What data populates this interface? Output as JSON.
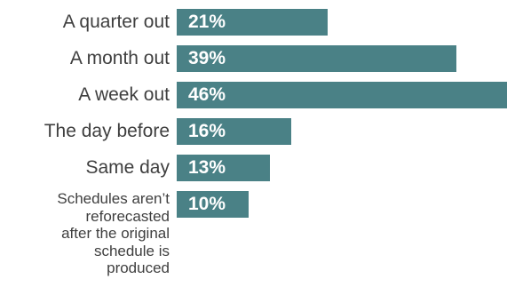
{
  "chart_data": {
    "type": "bar",
    "orientation": "horizontal",
    "categories": [
      "A quarter out",
      "A month out",
      "A week out",
      "The day before",
      "Same day",
      "Schedules aren’t\nreforecasted\nafter the original\nschedule is\nproduced"
    ],
    "values": [
      21,
      39,
      46,
      16,
      13,
      10
    ],
    "value_labels": [
      "21%",
      "39%",
      "46%",
      "16%",
      "13%",
      "10%"
    ],
    "bar_color": "#4a8186",
    "xlim": [
      0,
      46
    ],
    "title": "",
    "xlabel": "",
    "ylabel": "",
    "grid": false,
    "legend": "none"
  }
}
